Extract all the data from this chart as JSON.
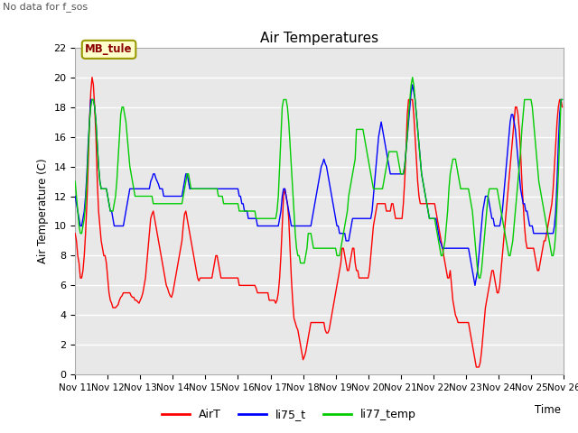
{
  "title": "Air Temperatures",
  "ylabel": "Air Temperature (C)",
  "xlabel": "Time",
  "note": "No data for f_sos",
  "annotation": "MB_tule",
  "ylim": [
    0,
    22
  ],
  "background_color": "#e8e8e8",
  "grid_color": "#ffffff",
  "series": {
    "AirT": {
      "color": "red",
      "lw": 1.0
    },
    "li75_t": {
      "color": "blue",
      "lw": 1.0
    },
    "li77_temp": {
      "color": "#00cc00",
      "lw": 1.0
    }
  },
  "xtick_labels": [
    "Nov 11",
    "Nov 12",
    "Nov 13",
    "Nov 14",
    "Nov 15",
    "Nov 16",
    "Nov 17",
    "Nov 18",
    "Nov 19",
    "Nov 20",
    "Nov 21",
    "Nov 22",
    "Nov 23",
    "Nov 24",
    "Nov 25",
    "Nov 26"
  ],
  "ytick_labels": [
    0,
    2,
    4,
    6,
    8,
    10,
    12,
    14,
    16,
    18,
    20,
    22
  ]
}
